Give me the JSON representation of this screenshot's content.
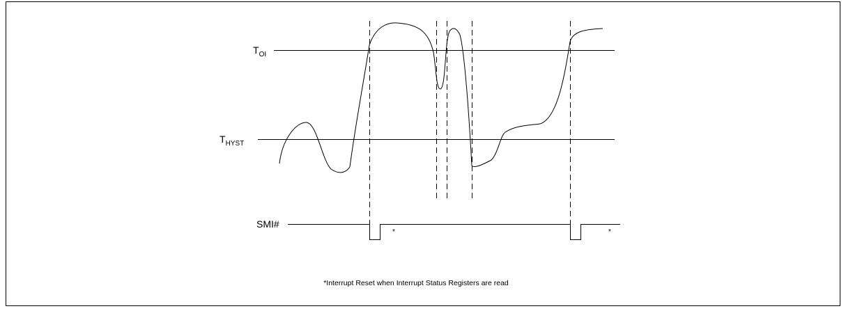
{
  "thresholds": [
    {
      "symbol": "T",
      "subscript": "OI"
    },
    {
      "symbol": "T",
      "subscript": "HYST"
    }
  ],
  "signal": {
    "name": "SMI#",
    "markers": [
      "*",
      "*"
    ]
  },
  "footnote": "*Interrupt Reset when Interrupt Status Registers are read"
}
